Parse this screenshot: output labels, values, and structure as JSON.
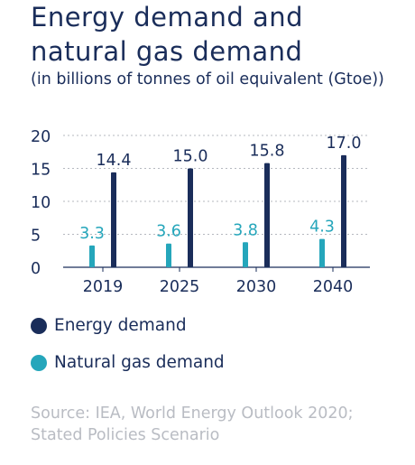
{
  "header": {
    "title_line1": "Energy demand and",
    "title_line2": "natural gas demand",
    "subtitle": "(in billions of tonnes of oil equivalent (Gtoe))"
  },
  "colors": {
    "energy": "#1a2d5a",
    "gas": "#25a6bb",
    "grid": "#b5b8bf",
    "text": "#1a2d5a",
    "source": "#b9bcc3"
  },
  "chart_data": {
    "type": "bar",
    "categories": [
      "2019",
      "2025",
      "2030",
      "2040"
    ],
    "series": [
      {
        "name": "Energy demand",
        "values": [
          14.4,
          15.0,
          15.8,
          17.0
        ],
        "labels": [
          "14.4",
          "15.0",
          "15.8",
          "17.0"
        ],
        "color": "#1a2d5a"
      },
      {
        "name": "Natural gas demand",
        "values": [
          3.3,
          3.6,
          3.8,
          4.3
        ],
        "labels": [
          "3.3",
          "3.6",
          "3.8",
          "4.3"
        ],
        "color": "#25a6bb"
      }
    ],
    "yticks": [
      "0",
      "5",
      "10",
      "15",
      "20"
    ],
    "ylim": [
      0,
      20
    ],
    "grid": true,
    "legend": "bottom-left"
  },
  "source": {
    "line1": "Source: IEA, World Energy Outlook 2020;",
    "line2": "Stated Policies Scenario"
  }
}
